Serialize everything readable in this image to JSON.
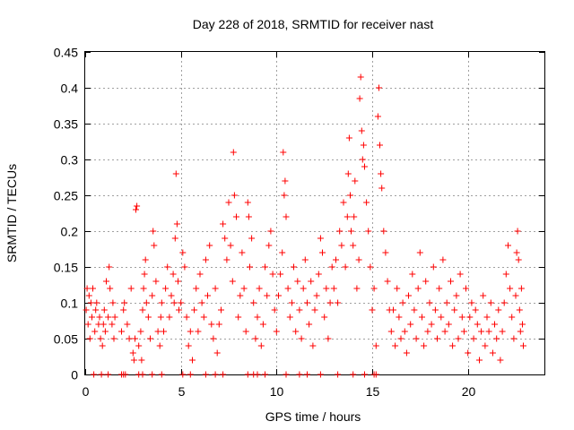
{
  "chart_data": {
    "type": "scatter",
    "title": "Day 228 of 2018, SRMTID for receiver nast",
    "xlabel": "GPS time / hours",
    "ylabel": "SRMTID / TECUs",
    "xlim": [
      0,
      24
    ],
    "ylim": [
      0,
      0.45
    ],
    "xticks": [
      0,
      5,
      10,
      15,
      20
    ],
    "xtick_labels": [
      "0",
      "5",
      "10",
      "15",
      "20"
    ],
    "yticks": [
      0,
      0.05,
      0.1,
      0.15,
      0.2,
      0.25,
      0.3,
      0.35,
      0.4,
      0.45
    ],
    "ytick_labels": [
      "0",
      "0.05",
      "0.1",
      "0.15",
      "0.2",
      "0.25",
      "0.3",
      "0.35",
      "0.4",
      "0.45"
    ],
    "grid": true,
    "marker": "+",
    "color": "#ff0000",
    "series": [
      {
        "name": "SRMTID",
        "points": [
          [
            0.05,
            0.09
          ],
          [
            0.1,
            0.12
          ],
          [
            0.15,
            0.07
          ],
          [
            0.2,
            0.11
          ],
          [
            0.25,
            0.05
          ],
          [
            0.3,
            0.1
          ],
          [
            0.35,
            0.08
          ],
          [
            0.4,
            0.12
          ],
          [
            0.5,
            0.06
          ],
          [
            0.55,
            0.09
          ],
          [
            0.6,
            0.1
          ],
          [
            0.7,
            0.07
          ],
          [
            0.75,
            0.08
          ],
          [
            0.8,
            0.05
          ],
          [
            0.9,
            0.04
          ],
          [
            0.95,
            0.07
          ],
          [
            1.0,
            0.09
          ],
          [
            1.05,
            0.06
          ],
          [
            1.1,
            0.13
          ],
          [
            1.2,
            0.08
          ],
          [
            1.25,
            0.15
          ],
          [
            1.3,
            0.12
          ],
          [
            1.4,
            0.07
          ],
          [
            1.45,
            0.1
          ],
          [
            1.5,
            0.05
          ],
          [
            1.55,
            0.08
          ],
          [
            0.45,
            0.0
          ],
          [
            0.85,
            0.0
          ],
          [
            1.2,
            0.0
          ],
          [
            1.9,
            0.06
          ],
          [
            2.0,
            0.09
          ],
          [
            2.05,
            0.1
          ],
          [
            2.2,
            0.07
          ],
          [
            2.3,
            0.05
          ],
          [
            2.4,
            0.12
          ],
          [
            2.5,
            0.03
          ],
          [
            2.55,
            0.02
          ],
          [
            2.6,
            0.05
          ],
          [
            2.65,
            0.23
          ],
          [
            2.7,
            0.235
          ],
          [
            2.8,
            0.04
          ],
          [
            2.9,
            0.06
          ],
          [
            2.95,
            0.02
          ],
          [
            3.0,
            0.09
          ],
          [
            3.05,
            0.12
          ],
          [
            3.1,
            0.14
          ],
          [
            3.15,
            0.16
          ],
          [
            3.2,
            0.1
          ],
          [
            3.3,
            0.08
          ],
          [
            3.4,
            0.05
          ],
          [
            3.5,
            0.11
          ],
          [
            3.55,
            0.2
          ],
          [
            3.6,
            0.18
          ],
          [
            3.7,
            0.13
          ],
          [
            3.8,
            0.06
          ],
          [
            3.9,
            0.04
          ],
          [
            3.95,
            0.08
          ],
          [
            4.0,
            0.1
          ],
          [
            4.1,
            0.06
          ],
          [
            4.2,
            0.12
          ],
          [
            4.3,
            0.15
          ],
          [
            4.4,
            0.08
          ],
          [
            4.5,
            0.11
          ],
          [
            4.6,
            0.14
          ],
          [
            4.65,
            0.1
          ],
          [
            4.7,
            0.19
          ],
          [
            4.75,
            0.28
          ],
          [
            4.8,
            0.21
          ],
          [
            4.85,
            0.13
          ],
          [
            4.9,
            0.09
          ],
          [
            1.9,
            0.0
          ],
          [
            2.0,
            0.0
          ],
          [
            2.1,
            0.0
          ],
          [
            2.8,
            0.0
          ],
          [
            3.0,
            0.0
          ],
          [
            3.5,
            0.0
          ],
          [
            4.0,
            0.0
          ],
          [
            5.0,
            0.1
          ],
          [
            5.1,
            0.17
          ],
          [
            5.2,
            0.15
          ],
          [
            5.3,
            0.08
          ],
          [
            5.4,
            0.04
          ],
          [
            5.5,
            0.06
          ],
          [
            5.6,
            0.02
          ],
          [
            5.7,
            0.09
          ],
          [
            5.8,
            0.12
          ],
          [
            5.9,
            0.06
          ],
          [
            6.0,
            0.14
          ],
          [
            6.1,
            0.1
          ],
          [
            6.2,
            0.08
          ],
          [
            6.3,
            0.16
          ],
          [
            6.4,
            0.11
          ],
          [
            6.5,
            0.18
          ],
          [
            6.6,
            0.07
          ],
          [
            6.7,
            0.05
          ],
          [
            6.8,
            0.12
          ],
          [
            6.9,
            0.03
          ],
          [
            7.0,
            0.07
          ],
          [
            7.1,
            0.09
          ],
          [
            7.2,
            0.21
          ],
          [
            7.3,
            0.19
          ],
          [
            7.4,
            0.16
          ],
          [
            7.5,
            0.24
          ],
          [
            7.6,
            0.18
          ],
          [
            7.7,
            0.13
          ],
          [
            7.75,
            0.31
          ],
          [
            7.8,
            0.25
          ],
          [
            7.9,
            0.22
          ],
          [
            8.0,
            0.08
          ],
          [
            8.1,
            0.11
          ],
          [
            8.2,
            0.17
          ],
          [
            8.3,
            0.12
          ],
          [
            8.4,
            0.06
          ],
          [
            8.5,
            0.24
          ],
          [
            8.55,
            0.22
          ],
          [
            8.6,
            0.15
          ],
          [
            8.7,
            0.19
          ],
          [
            8.8,
            0.1
          ],
          [
            8.9,
            0.05
          ],
          [
            9.0,
            0.08
          ],
          [
            9.1,
            0.12
          ],
          [
            9.2,
            0.04
          ],
          [
            9.3,
            0.07
          ],
          [
            9.4,
            0.15
          ],
          [
            9.5,
            0.11
          ],
          [
            9.6,
            0.18
          ],
          [
            9.7,
            0.2
          ],
          [
            9.8,
            0.14
          ],
          [
            9.9,
            0.09
          ],
          [
            5.1,
            0.0
          ],
          [
            5.5,
            0.0
          ],
          [
            6.3,
            0.0
          ],
          [
            6.8,
            0.0
          ],
          [
            7.2,
            0.0
          ],
          [
            8.5,
            0.0
          ],
          [
            8.8,
            0.0
          ],
          [
            9.0,
            0.0
          ],
          [
            9.4,
            0.0
          ],
          [
            10.0,
            0.06
          ],
          [
            10.1,
            0.11
          ],
          [
            10.2,
            0.14
          ],
          [
            10.3,
            0.17
          ],
          [
            10.35,
            0.31
          ],
          [
            10.4,
            0.25
          ],
          [
            10.45,
            0.27
          ],
          [
            10.5,
            0.22
          ],
          [
            10.6,
            0.12
          ],
          [
            10.7,
            0.08
          ],
          [
            10.8,
            0.1
          ],
          [
            10.9,
            0.15
          ],
          [
            11.0,
            0.06
          ],
          [
            11.1,
            0.13
          ],
          [
            11.2,
            0.09
          ],
          [
            11.3,
            0.05
          ],
          [
            11.4,
            0.12
          ],
          [
            11.5,
            0.16
          ],
          [
            11.6,
            0.1
          ],
          [
            11.7,
            0.07
          ],
          [
            11.8,
            0.13
          ],
          [
            11.9,
            0.04
          ],
          [
            12.0,
            0.09
          ],
          [
            12.1,
            0.11
          ],
          [
            12.2,
            0.14
          ],
          [
            12.3,
            0.19
          ],
          [
            12.4,
            0.17
          ],
          [
            12.5,
            0.08
          ],
          [
            12.6,
            0.12
          ],
          [
            12.7,
            0.05
          ],
          [
            12.8,
            0.1
          ],
          [
            12.9,
            0.15
          ],
          [
            10.5,
            0.0
          ],
          [
            11.2,
            0.0
          ],
          [
            11.6,
            0.0
          ],
          [
            12.3,
            0.0
          ],
          [
            13.0,
            0.12
          ],
          [
            13.1,
            0.16
          ],
          [
            13.2,
            0.1
          ],
          [
            13.3,
            0.2
          ],
          [
            13.4,
            0.18
          ],
          [
            13.5,
            0.24
          ],
          [
            13.6,
            0.15
          ],
          [
            13.7,
            0.22
          ],
          [
            13.75,
            0.28
          ],
          [
            13.8,
            0.33
          ],
          [
            13.85,
            0.25
          ],
          [
            13.9,
            0.2
          ],
          [
            14.0,
            0.18
          ],
          [
            14.05,
            0.22
          ],
          [
            14.1,
            0.27
          ],
          [
            14.2,
            0.12
          ],
          [
            14.3,
            0.16
          ],
          [
            14.35,
            0.385
          ],
          [
            14.4,
            0.415
          ],
          [
            14.45,
            0.34
          ],
          [
            14.5,
            0.3
          ],
          [
            14.55,
            0.32
          ],
          [
            14.6,
            0.29
          ],
          [
            14.7,
            0.24
          ],
          [
            14.8,
            0.2
          ],
          [
            14.9,
            0.15
          ],
          [
            15.0,
            0.09
          ],
          [
            15.1,
            0.12
          ],
          [
            15.2,
            0.04
          ],
          [
            15.3,
            0.36
          ],
          [
            15.35,
            0.4
          ],
          [
            15.4,
            0.32
          ],
          [
            15.45,
            0.28
          ],
          [
            15.5,
            0.26
          ],
          [
            15.6,
            0.2
          ],
          [
            15.7,
            0.17
          ],
          [
            15.8,
            0.13
          ],
          [
            15.9,
            0.09
          ],
          [
            13.2,
            0.0
          ],
          [
            14.0,
            0.0
          ],
          [
            14.6,
            0.0
          ],
          [
            15.1,
            0.0
          ],
          [
            15.2,
            0.0
          ],
          [
            16.0,
            0.06
          ],
          [
            16.1,
            0.09
          ],
          [
            16.2,
            0.04
          ],
          [
            16.3,
            0.12
          ],
          [
            16.4,
            0.08
          ],
          [
            16.5,
            0.05
          ],
          [
            16.6,
            0.1
          ],
          [
            16.7,
            0.06
          ],
          [
            16.8,
            0.03
          ],
          [
            16.9,
            0.11
          ],
          [
            17.0,
            0.07
          ],
          [
            17.1,
            0.14
          ],
          [
            17.2,
            0.09
          ],
          [
            17.3,
            0.05
          ],
          [
            17.4,
            0.12
          ],
          [
            17.5,
            0.17
          ],
          [
            17.6,
            0.08
          ],
          [
            17.7,
            0.04
          ],
          [
            17.8,
            0.13
          ],
          [
            17.9,
            0.06
          ],
          [
            18.0,
            0.1
          ],
          [
            18.1,
            0.07
          ],
          [
            18.2,
            0.15
          ],
          [
            18.3,
            0.09
          ],
          [
            18.4,
            0.05
          ],
          [
            18.5,
            0.12
          ],
          [
            18.6,
            0.08
          ],
          [
            18.7,
            0.16
          ],
          [
            18.8,
            0.06
          ],
          [
            18.9,
            0.1
          ],
          [
            19.0,
            0.07
          ],
          [
            19.1,
            0.13
          ],
          [
            19.2,
            0.04
          ],
          [
            19.3,
            0.09
          ],
          [
            19.4,
            0.11
          ],
          [
            19.5,
            0.05
          ],
          [
            19.6,
            0.14
          ],
          [
            19.7,
            0.08
          ],
          [
            19.8,
            0.06
          ],
          [
            19.9,
            0.12
          ],
          [
            20.0,
            0.03
          ],
          [
            20.1,
            0.08
          ],
          [
            20.2,
            0.1
          ],
          [
            20.3,
            0.05
          ],
          [
            20.4,
            0.09
          ],
          [
            20.5,
            0.07
          ],
          [
            20.6,
            0.02
          ],
          [
            20.7,
            0.06
          ],
          [
            20.8,
            0.11
          ],
          [
            20.9,
            0.04
          ],
          [
            21.0,
            0.08
          ],
          [
            21.1,
            0.06
          ],
          [
            21.2,
            0.1
          ],
          [
            21.3,
            0.03
          ],
          [
            21.4,
            0.07
          ],
          [
            21.5,
            0.05
          ],
          [
            21.6,
            0.09
          ],
          [
            21.7,
            0.02
          ],
          [
            21.8,
            0.06
          ],
          [
            21.9,
            0.1
          ],
          [
            22.0,
            0.14
          ],
          [
            22.1,
            0.18
          ],
          [
            22.2,
            0.12
          ],
          [
            22.3,
            0.08
          ],
          [
            22.4,
            0.05
          ],
          [
            22.5,
            0.11
          ],
          [
            22.55,
            0.17
          ],
          [
            22.6,
            0.2
          ],
          [
            22.65,
            0.16
          ],
          [
            22.7,
            0.09
          ],
          [
            22.75,
            0.06
          ],
          [
            22.8,
            0.12
          ],
          [
            22.85,
            0.07
          ],
          [
            22.9,
            0.04
          ]
        ]
      }
    ]
  }
}
